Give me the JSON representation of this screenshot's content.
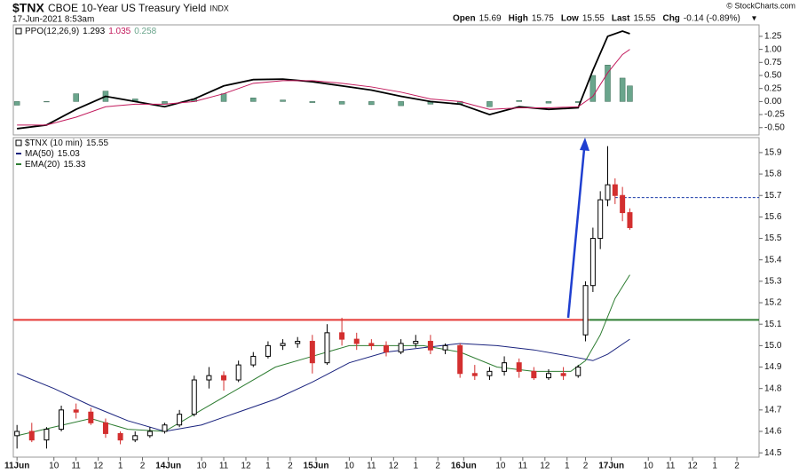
{
  "header": {
    "symbol": "$TNX",
    "name": "CBOE 10-Year US Treasury Yield",
    "exchange": "INDX",
    "timestamp": "17-Jun-2021 8:53am",
    "quote": [
      {
        "label": "Open",
        "value": 15.69
      },
      {
        "label": "High",
        "value": 15.75
      },
      {
        "label": "Low",
        "value": 15.55
      },
      {
        "label": "Last",
        "value": 15.55
      }
    ],
    "change_label": "Chg",
    "change": "-0.14 (-0.89%)",
    "credit": "© StockCharts.com"
  },
  "chart_data": [
    {
      "type": "indicator",
      "legend": {
        "label": "PPO(12,26,9)",
        "values": [
          1.293,
          1.035,
          0.258
        ]
      },
      "xlim": [
        -1,
        201
      ],
      "ylim": [
        -0.64,
        1.47
      ],
      "yticks": [
        {
          "value": 1.25,
          "label": "1.25"
        },
        {
          "value": 1,
          "label": "1.00"
        },
        {
          "value": 0.75,
          "label": "0.75"
        },
        {
          "value": 0.5,
          "label": "0.50"
        },
        {
          "value": 0.25,
          "label": "0.25"
        },
        {
          "value": 0,
          "label": "0.00"
        },
        {
          "value": -0.25,
          "label": "-0.25"
        },
        {
          "value": -0.5,
          "label": "-0.50"
        }
      ],
      "x": [
        0,
        8,
        16,
        24,
        32,
        40,
        48,
        56,
        64,
        72,
        80,
        88,
        96,
        104,
        112,
        120,
        128,
        136,
        144,
        152,
        156,
        160,
        164,
        166
      ],
      "series": [
        {
          "kind": "line",
          "color": "#000000",
          "values": [
            -0.52,
            -0.45,
            -0.15,
            0.1,
            0.0,
            -0.1,
            0.05,
            0.3,
            0.42,
            0.43,
            0.38,
            0.3,
            0.22,
            0.1,
            0.0,
            -0.05,
            -0.25,
            -0.1,
            -0.15,
            -0.12,
            0.6,
            1.25,
            1.35,
            1.3
          ]
        },
        {
          "kind": "line",
          "color": "#c2185b",
          "values": [
            -0.45,
            -0.45,
            -0.3,
            -0.1,
            -0.05,
            -0.05,
            0.0,
            0.15,
            0.35,
            0.4,
            0.4,
            0.35,
            0.28,
            0.18,
            0.05,
            0.0,
            -0.15,
            -0.12,
            -0.12,
            -0.1,
            0.1,
            0.55,
            0.9,
            1.0
          ]
        },
        {
          "kind": "histogram",
          "color": "#6aa58c",
          "values": [
            -0.07,
            0,
            0.15,
            0.2,
            0.05,
            -0.05,
            0.05,
            0.15,
            0.07,
            0.03,
            -0.02,
            -0.05,
            -0.06,
            -0.08,
            -0.05,
            -0.05,
            -0.1,
            0.02,
            -0.03,
            -0.02,
            0.5,
            0.7,
            0.45,
            0.3
          ]
        }
      ]
    },
    {
      "type": "candlestick",
      "legend": {
        "label": "$TNX (10 min)",
        "value": 15.55
      },
      "xlim": [
        -1,
        201
      ],
      "ylim": [
        14.48,
        15.97
      ],
      "yticks": [
        14.5,
        14.6,
        14.7,
        14.8,
        14.9,
        {
          "value": 15,
          "label": "15.0"
        },
        15.1,
        15.2,
        15.3,
        15.4,
        15.5,
        15.6,
        15.7,
        15.8,
        15.9
      ],
      "xticks": [
        {
          "value": 0,
          "label": "11Jun"
        },
        {
          "value": 10,
          "label": "10"
        },
        {
          "value": 16,
          "label": "11"
        },
        {
          "value": 22,
          "label": "12"
        },
        {
          "value": 28,
          "label": "1"
        },
        {
          "value": 34,
          "label": "2"
        },
        {
          "value": 41,
          "label": "14Jun"
        },
        {
          "value": 50,
          "label": "10"
        },
        {
          "value": 56,
          "label": "11"
        },
        {
          "value": 62,
          "label": "12"
        },
        {
          "value": 68,
          "label": "1"
        },
        {
          "value": 74,
          "label": "2"
        },
        {
          "value": 81,
          "label": "15Jun"
        },
        {
          "value": 90,
          "label": "10"
        },
        {
          "value": 96,
          "label": "11"
        },
        {
          "value": 102,
          "label": "12"
        },
        {
          "value": 108,
          "label": "1"
        },
        {
          "value": 114,
          "label": "2"
        },
        {
          "value": 121,
          "label": "16Jun"
        },
        {
          "value": 131,
          "label": "10"
        },
        {
          "value": 137,
          "label": "11"
        },
        {
          "value": 143,
          "label": "12"
        },
        {
          "value": 149,
          "label": "1"
        },
        {
          "value": 154,
          "label": "2"
        },
        {
          "value": 161,
          "label": "17Jun"
        },
        {
          "value": 171,
          "label": "10"
        },
        {
          "value": 177,
          "label": "11"
        },
        {
          "value": 183,
          "label": "12"
        },
        {
          "value": 189,
          "label": "1"
        },
        {
          "value": 195,
          "label": "2"
        }
      ],
      "x": [
        0,
        4,
        8,
        12,
        16,
        20,
        24,
        28,
        32,
        36,
        40,
        44,
        48,
        52,
        56,
        60,
        64,
        68,
        72,
        76,
        80,
        84,
        88,
        92,
        96,
        100,
        104,
        108,
        112,
        116,
        120,
        124,
        128,
        132,
        136,
        140,
        144,
        148,
        152,
        154,
        156,
        158,
        160,
        162,
        164,
        166
      ],
      "open": [
        14.58,
        14.6,
        14.56,
        14.61,
        14.7,
        14.69,
        14.64,
        14.59,
        14.56,
        14.58,
        14.6,
        14.63,
        14.68,
        14.84,
        14.86,
        14.84,
        14.91,
        14.95,
        15.0,
        15.01,
        15.02,
        14.92,
        15.06,
        15.03,
        15.01,
        15.0,
        14.97,
        15.01,
        15.02,
        14.98,
        15.0,
        14.87,
        14.86,
        14.88,
        14.92,
        14.88,
        14.85,
        14.87,
        14.86,
        15.05,
        15.28,
        15.5,
        15.68,
        15.75,
        15.7,
        15.62
      ],
      "high": [
        14.63,
        14.64,
        14.62,
        14.72,
        14.73,
        14.71,
        14.66,
        14.6,
        14.6,
        14.62,
        14.64,
        14.7,
        14.86,
        14.9,
        14.88,
        14.93,
        14.97,
        15.02,
        15.03,
        15.04,
        15.05,
        15.1,
        15.13,
        15.06,
        15.03,
        15.02,
        15.03,
        15.05,
        15.05,
        15.01,
        15.01,
        14.91,
        14.9,
        14.95,
        14.94,
        14.9,
        14.89,
        14.9,
        14.91,
        15.3,
        15.55,
        15.72,
        15.93,
        15.78,
        15.74,
        15.64
      ],
      "low": [
        14.52,
        14.55,
        14.52,
        14.6,
        14.66,
        14.63,
        14.57,
        14.54,
        14.55,
        14.57,
        14.59,
        14.62,
        14.67,
        14.8,
        14.79,
        14.83,
        14.9,
        14.94,
        14.98,
        14.99,
        14.87,
        14.91,
        15.0,
        14.98,
        14.98,
        14.95,
        14.96,
        14.99,
        14.96,
        14.96,
        14.85,
        14.84,
        14.84,
        14.86,
        14.85,
        14.84,
        14.84,
        14.84,
        14.85,
        15.02,
        15.25,
        15.45,
        15.65,
        15.66,
        15.58,
        15.54
      ],
      "close": [
        14.6,
        14.56,
        14.61,
        14.7,
        14.69,
        14.64,
        14.59,
        14.56,
        14.58,
        14.6,
        14.63,
        14.68,
        14.84,
        14.86,
        14.84,
        14.91,
        14.95,
        15.0,
        15.01,
        15.02,
        14.92,
        15.06,
        15.03,
        15.01,
        15.0,
        14.97,
        15.01,
        15.02,
        14.98,
        15.0,
        14.87,
        14.86,
        14.88,
        14.92,
        14.88,
        14.85,
        14.87,
        14.86,
        14.9,
        15.28,
        15.5,
        15.68,
        15.75,
        15.7,
        15.62,
        15.55
      ],
      "up_color": "#000000",
      "down_color": "#d32f2f",
      "series": [
        {
          "name": "MA(50)",
          "legend_value": 15.03,
          "color": "#1a237e",
          "x": [
            0,
            10,
            20,
            30,
            40,
            50,
            60,
            70,
            80,
            90,
            100,
            110,
            120,
            130,
            140,
            150,
            156,
            160,
            166
          ],
          "values": [
            14.87,
            14.8,
            14.72,
            14.65,
            14.6,
            14.63,
            14.69,
            14.75,
            14.83,
            14.92,
            14.97,
            14.99,
            15.01,
            15.0,
            14.98,
            14.95,
            14.93,
            14.96,
            15.03
          ]
        },
        {
          "name": "EMA(20)",
          "legend_value": 15.33,
          "color": "#2e7d32",
          "x": [
            0,
            10,
            20,
            30,
            40,
            50,
            60,
            70,
            80,
            90,
            100,
            110,
            120,
            130,
            140,
            150,
            154,
            158,
            162,
            166
          ],
          "values": [
            14.58,
            14.62,
            14.66,
            14.61,
            14.6,
            14.7,
            14.8,
            14.9,
            14.95,
            15.0,
            15.0,
            15.0,
            14.97,
            14.9,
            14.88,
            14.88,
            14.93,
            15.05,
            15.22,
            15.33
          ]
        }
      ],
      "hlines": [
        {
          "value": 15.12,
          "color": "#e53935",
          "from": -1,
          "to": 155
        },
        {
          "value": 15.12,
          "color": "#2e7d32",
          "from": 155,
          "to": 201
        },
        {
          "value": 15.69,
          "color": "#1a3aa8",
          "from": 162,
          "to": 201,
          "dashed": true
        }
      ]
    }
  ]
}
